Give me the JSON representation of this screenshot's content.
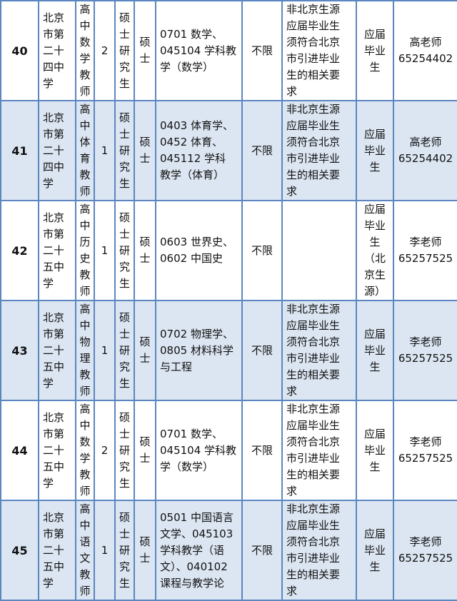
{
  "colors": {
    "border": "#5b86c0",
    "alt_row": "#dce6f2"
  },
  "rows": [
    {
      "no": "40",
      "school": "北京\n市第\n二十\n四中\n学",
      "position": "高\n中\n数\n学\n教\n师",
      "count": "2",
      "education": "硕\n士\n研\n究\n生",
      "degree": "硕\n士",
      "major": "0701 数学、\n045104 学科教\n学（数学）",
      "age": "不限",
      "other": "非北京生源\n应届毕业生\n须符合北京\n市引进毕业\n生的相关要\n求",
      "type": "应届\n毕业\n生",
      "contact": "高老师\n65254402"
    },
    {
      "no": "41",
      "school": "北京\n市第\n二十\n四中\n学",
      "position": "高\n中\n体\n育\n教\n师",
      "count": "1",
      "education": "硕\n士\n研\n究\n生",
      "degree": "硕\n士",
      "major": "0403 体育学、\n0452 体育、\n045112  学科\n教学（体育）",
      "age": "不限",
      "other": "非北京生源\n应届毕业生\n须符合北京\n市引进毕业\n生的相关要\n求",
      "type": "应届\n毕业\n生",
      "contact": "高老师\n65254402"
    },
    {
      "no": "42",
      "school": "北京\n市第\n二十\n五中\n学",
      "position": "高\n中\n历\n史\n教\n师",
      "count": "1",
      "education": "硕\n士\n研\n究\n生",
      "degree": "硕\n士",
      "major": "0603 世界史、\n0602 中国史",
      "age": "不限",
      "other": "",
      "type": "应届\n毕业\n生\n（北\n京生\n源）",
      "contact": "李老师\n65257525"
    },
    {
      "no": "43",
      "school": "北京\n市第\n二十\n五中\n学",
      "position": "高\n中\n物\n理\n教\n师",
      "count": "1",
      "education": "硕\n士\n研\n究\n生",
      "degree": "硕\n士",
      "major": "0702 物理学、\n0805 材料科学\n与工程",
      "age": "不限",
      "other": "非北京生源\n应届毕业生\n须符合北京\n市引进毕业\n生的相关要\n求",
      "type": "应届\n毕业\n生",
      "contact": "李老师\n65257525"
    },
    {
      "no": "44",
      "school": "北京\n市第\n二十\n五中\n学",
      "position": "高\n中\n数\n学\n教\n师",
      "count": "2",
      "education": "硕\n士\n研\n究\n生",
      "degree": "硕\n士",
      "major": "0701 数学、\n045104 学科教\n学（数学）",
      "age": "不限",
      "other": "非北京生源\n应届毕业生\n须符合北京\n市引进毕业\n生的相关要\n求",
      "type": "应届\n毕业\n生",
      "contact": "李老师\n65257525"
    },
    {
      "no": "45",
      "school": "北京\n市第\n二十\n五中\n学",
      "position": "高\n中\n语\n文\n教\n师",
      "count": "1",
      "education": "硕\n士\n研\n究\n生",
      "degree": "硕\n士",
      "major": "0501 中国语言\n文学、045103\n学科教学（语\n文）、040102\n课程与教学论",
      "age": "不限",
      "other": "非北京生源\n应届毕业生\n须符合北京\n市引进毕业\n生的相关要\n求",
      "type": "应届\n毕业\n生",
      "contact": "李老师\n65257525"
    }
  ]
}
